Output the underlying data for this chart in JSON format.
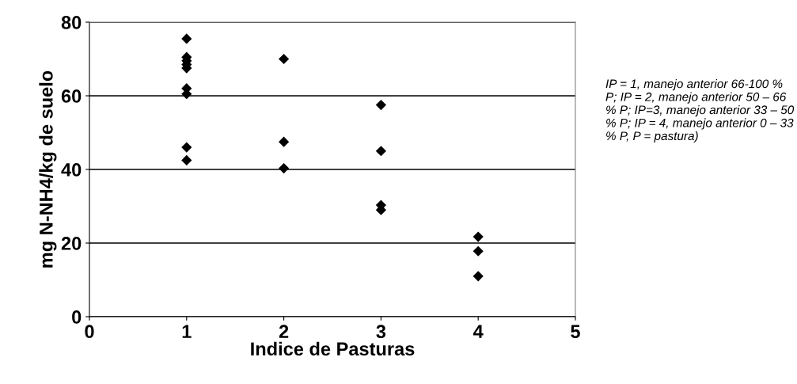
{
  "chart_data": {
    "type": "scatter",
    "xlabel": "Indice de Pasturas",
    "ylabel": "mg N-NH4/kg de suelo",
    "x": [
      1,
      1,
      1,
      1,
      1,
      1,
      1,
      1,
      1,
      2,
      2,
      2,
      3,
      3,
      3,
      3,
      4,
      4,
      4
    ],
    "values": [
      75.5,
      70.5,
      69.5,
      68.5,
      67.5,
      62,
      60.5,
      46,
      42.5,
      70,
      47.5,
      40.3,
      57.5,
      45,
      30.3,
      29,
      21.7,
      17.8,
      11
    ],
    "color": "#000000",
    "marker": "diamond",
    "xlim": [
      0,
      5
    ],
    "xticks": [
      0,
      1,
      2,
      3,
      4,
      5
    ],
    "ylim": [
      0,
      80
    ],
    "yticks": [
      0,
      20,
      40,
      60,
      80
    ],
    "grid": "y",
    "annotations": [
      "IP = 1, manejo anterior 66-100 % P; IP = 2, manejo anterior 50 – 66 % P; IP=3, manejo anterior 33 – 50 % P; IP = 4, manejo anterior 0 – 33 % P, P = pastura)"
    ]
  }
}
